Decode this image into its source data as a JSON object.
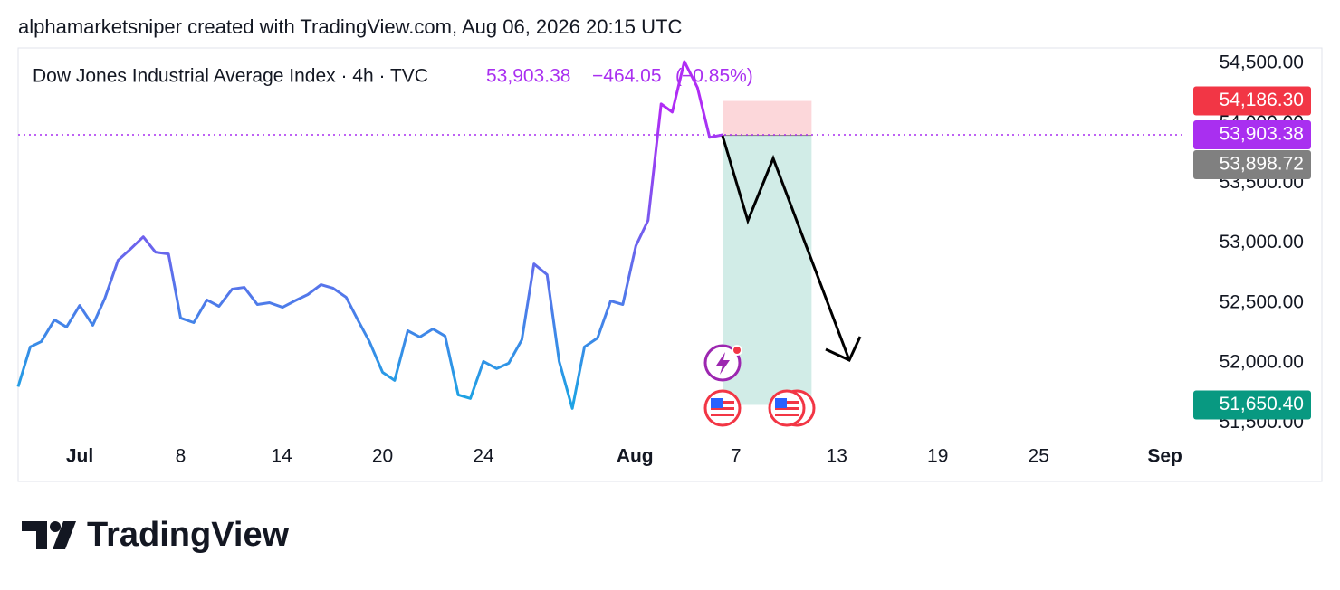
{
  "header": "alphamarketsniper created with TradingView.com, Aug 06, 2026 20:15 UTC",
  "chart_data": {
    "type": "line",
    "title": "Dow Jones Industrial Average Index · 4h · TVC",
    "last": {
      "value": 53903.38,
      "label": "53,903.38"
    },
    "change": "−464.05",
    "change_percent": "(−0.85%)",
    "legend_color": "#a92ff0",
    "colors": [
      "#1ea2e4",
      "#b02cf5"
    ],
    "x": [
      -0.61,
      -0.49,
      -0.38,
      -0.25,
      -0.13,
      0,
      0.13,
      0.25,
      0.38,
      0.5,
      0.63,
      0.75,
      0.88,
      1.0,
      1.13,
      1.26,
      1.38,
      1.51,
      1.63,
      1.76,
      1.88,
      2.01,
      2.13,
      2.26,
      2.39,
      2.51,
      2.64,
      2.76,
      2.87,
      3.0,
      3.12,
      3.25,
      3.37,
      3.5,
      3.62,
      3.75,
      3.87,
      4.0,
      4.13,
      4.25,
      4.38,
      4.5,
      4.63,
      4.75,
      4.88,
      5.0,
      5.13,
      5.26,
      5.38,
      5.51,
      5.63,
      5.76,
      5.87,
      5.99,
      6.12,
      6.24,
      6.37
    ],
    "values": [
      51802,
      52134,
      52179,
      52360,
      52300,
      52480,
      52315,
      52541,
      52857,
      52948,
      53053,
      52925,
      52910,
      52375,
      52337,
      52526,
      52473,
      52616,
      52631,
      52488,
      52503,
      52465,
      52518,
      52571,
      52654,
      52624,
      52548,
      52352,
      52179,
      51923,
      51855,
      52269,
      52217,
      52284,
      52224,
      51734,
      51704,
      52013,
      51953,
      51998,
      52194,
      52827,
      52737,
      52013,
      51621,
      52134,
      52209,
      52518,
      52488,
      52978,
      53189,
      54161,
      54093,
      54515,
      54297,
      53882,
      53903.38
    ],
    "xlim": [
      -0.61,
      10.96
    ],
    "xticks": [
      {
        "value": 0,
        "label": "Jul"
      },
      {
        "value": 1,
        "label": "8"
      },
      {
        "value": 2,
        "label": "14"
      },
      {
        "value": 3,
        "label": "20"
      },
      {
        "value": 4,
        "label": "24"
      },
      {
        "value": 5.5,
        "label": "Aug"
      },
      {
        "value": 6.5,
        "label": "7"
      },
      {
        "value": 7.5,
        "label": "13"
      },
      {
        "value": 8.5,
        "label": "19"
      },
      {
        "value": 9.5,
        "label": "25"
      },
      {
        "value": 10.75,
        "label": "Sep"
      }
    ],
    "ylim": [
      51367,
      54613
    ],
    "yticks": [
      {
        "value": 54500,
        "label": "54,500.00"
      },
      {
        "value": 54000,
        "label": "54,000.00"
      },
      {
        "value": 53500,
        "label": "53,500.00"
      },
      {
        "value": 53000,
        "label": "53,000.00"
      },
      {
        "value": 52500,
        "label": "52,500.00"
      },
      {
        "value": 52000,
        "label": "52,000.00"
      },
      {
        "value": 51500,
        "label": "51,500.00"
      }
    ],
    "position": {
      "x": [
        6.37,
        7.25
      ],
      "stop": {
        "value": 54186.3,
        "label": "54,186.30",
        "color": "#f23645"
      },
      "entry": {
        "value": 53898.72,
        "label": "53,898.72",
        "color": "#808080"
      },
      "target": {
        "value": 51650.4,
        "label": "51,650.40",
        "color": "#089981"
      }
    }
  },
  "footer": {
    "brand": "TradingView"
  }
}
